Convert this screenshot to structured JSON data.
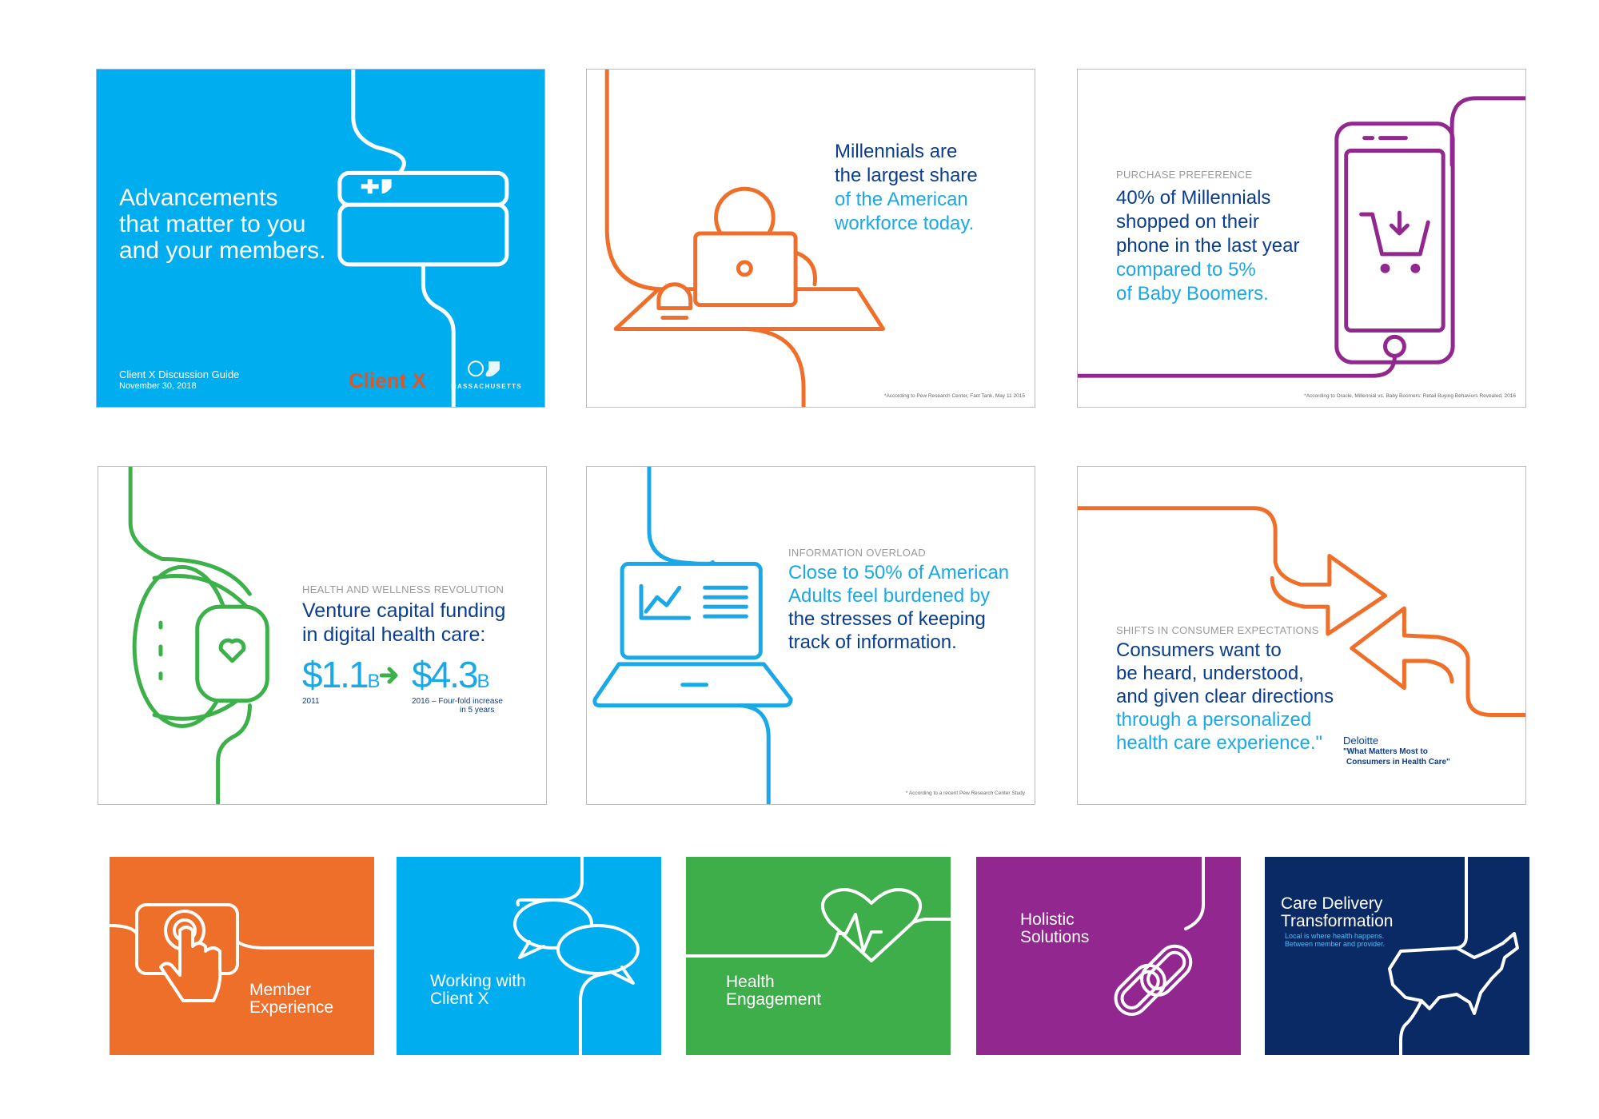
{
  "cards": {
    "cover": {
      "headline": [
        "Advancements",
        "that matter to you",
        "and your members."
      ],
      "guide_title": "Client X Discussion Guide",
      "date": "November 30, 2018",
      "client_logo": "Client X",
      "partner_logo": "MASSACHUSETTS",
      "color": "#00adef"
    },
    "millennials": {
      "lines_dark": [
        "Millennials are",
        "the largest share"
      ],
      "lines_accent": [
        "of the American",
        "workforce today."
      ],
      "footnote": "*According to Pew Research Center, Fact Tank, May 11 2015",
      "icon": "person-laptop-icon",
      "color": "#ef6f2a"
    },
    "purchase": {
      "kicker": "PURCHASE PREFERENCE",
      "lines_dark": [
        "40% of Millennials",
        "shopped on their",
        "phone in the last year"
      ],
      "lines_accent": [
        "compared to 5%",
        "of Baby Boomers."
      ],
      "footnote": "*According to Oracle, Millennial vs. Baby Boomers: Retail Buying Behaviors Revealed, 2016",
      "icon": "phone-cart-icon",
      "color": "#92278f"
    },
    "wellness": {
      "kicker": "HEALTH AND WELLNESS REVOLUTION",
      "lines_dark": [
        "Venture capital funding",
        "in digital health care:"
      ],
      "stat_from": "$1.1",
      "stat_from_unit": "B",
      "stat_from_year": "2011",
      "stat_to": "$4.3",
      "stat_to_unit": "B",
      "stat_to_year": "2016",
      "stat_to_note_1": "– Four-fold increase",
      "stat_to_note_2": "in 5 years",
      "icon": "fitness-tracker-icon",
      "color": "#3cb14a"
    },
    "overload": {
      "kicker": "INFORMATION OVERLOAD",
      "lines_accent": [
        "Close to 50% of American",
        "Adults feel burdened by"
      ],
      "lines_dark": [
        "the stresses of keeping",
        "track of information."
      ],
      "footnote": "* According to a recent Pew Research Center Study",
      "icon": "laptop-chart-icon",
      "color": "#1aa8e6"
    },
    "shifts": {
      "kicker": "SHIFTS IN CONSUMER EXPECTATIONS",
      "lines_dark": [
        "Consumers want to",
        "be heard, understood,",
        "and given clear directions"
      ],
      "lines_accent": [
        "through a personalized",
        "health care experience.\""
      ],
      "source_name": "Deloitte",
      "source_title_1": "\"What Matters Most to",
      "source_title_2": "Consumers in Health Care\"",
      "icon": "arrows-exchange-icon",
      "color": "#ef6f2a"
    }
  },
  "tiles": [
    {
      "lines": [
        "Member",
        "Experience"
      ],
      "icon": "touch-tablet-icon",
      "color": "#ee6f2a"
    },
    {
      "lines": [
        "Working with",
        "Client X"
      ],
      "icon": "chat-bubbles-icon",
      "color": "#00adef"
    },
    {
      "lines": [
        "Health",
        "Engagement"
      ],
      "icon": "heartbeat-icon",
      "color": "#3dae49"
    },
    {
      "lines": [
        "Holistic",
        "Solutions"
      ],
      "icon": "chain-link-icon",
      "color": "#92278f"
    },
    {
      "lines": [
        "Care Delivery",
        "Transformation"
      ],
      "sub": [
        "Local is where health happens.",
        "Between member and provider."
      ],
      "icon": "usa-map-icon",
      "color": "#0a2a66"
    }
  ]
}
